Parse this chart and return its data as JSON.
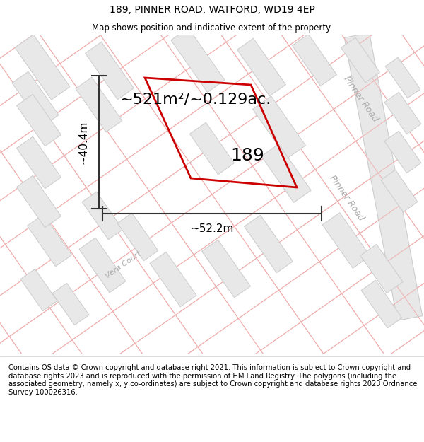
{
  "title": "189, PINNER ROAD, WATFORD, WD19 4EP",
  "subtitle": "Map shows position and indicative extent of the property.",
  "area_label": "~521m²/~0.129ac.",
  "property_number": "189",
  "dim_width": "~52.2m",
  "dim_height": "~40.4m",
  "map_bg": "#ffffff",
  "title_fontsize": 10,
  "subtitle_fontsize": 8.5,
  "footer_fontsize": 7.2,
  "footer_text": "Contains OS data © Crown copyright and database right 2021. This information is subject to Crown copyright and database rights 2023 and is reproduced with the permission of HM Land Registry. The polygons (including the associated geometry, namely x, y co-ordinates) are subject to Crown copyright and database rights 2023 Ordnance Survey 100026316.",
  "road_label_upper": "Pinner Road",
  "road_label_lower": "Pinner Road",
  "court_label": "Vera Court",
  "highlight_color": "#cc0000",
  "building_fill": "#e8e8e8",
  "building_edge": "#cccccc",
  "street_line_color": "#f0b0b0",
  "road_fill": "#e0e0e0",
  "dim_color": "#333333",
  "area_fontsize": 16,
  "property_num_fontsize": 18,
  "road_label_color": "#aaaaaa",
  "vera_court_color": "#aaaaaa"
}
